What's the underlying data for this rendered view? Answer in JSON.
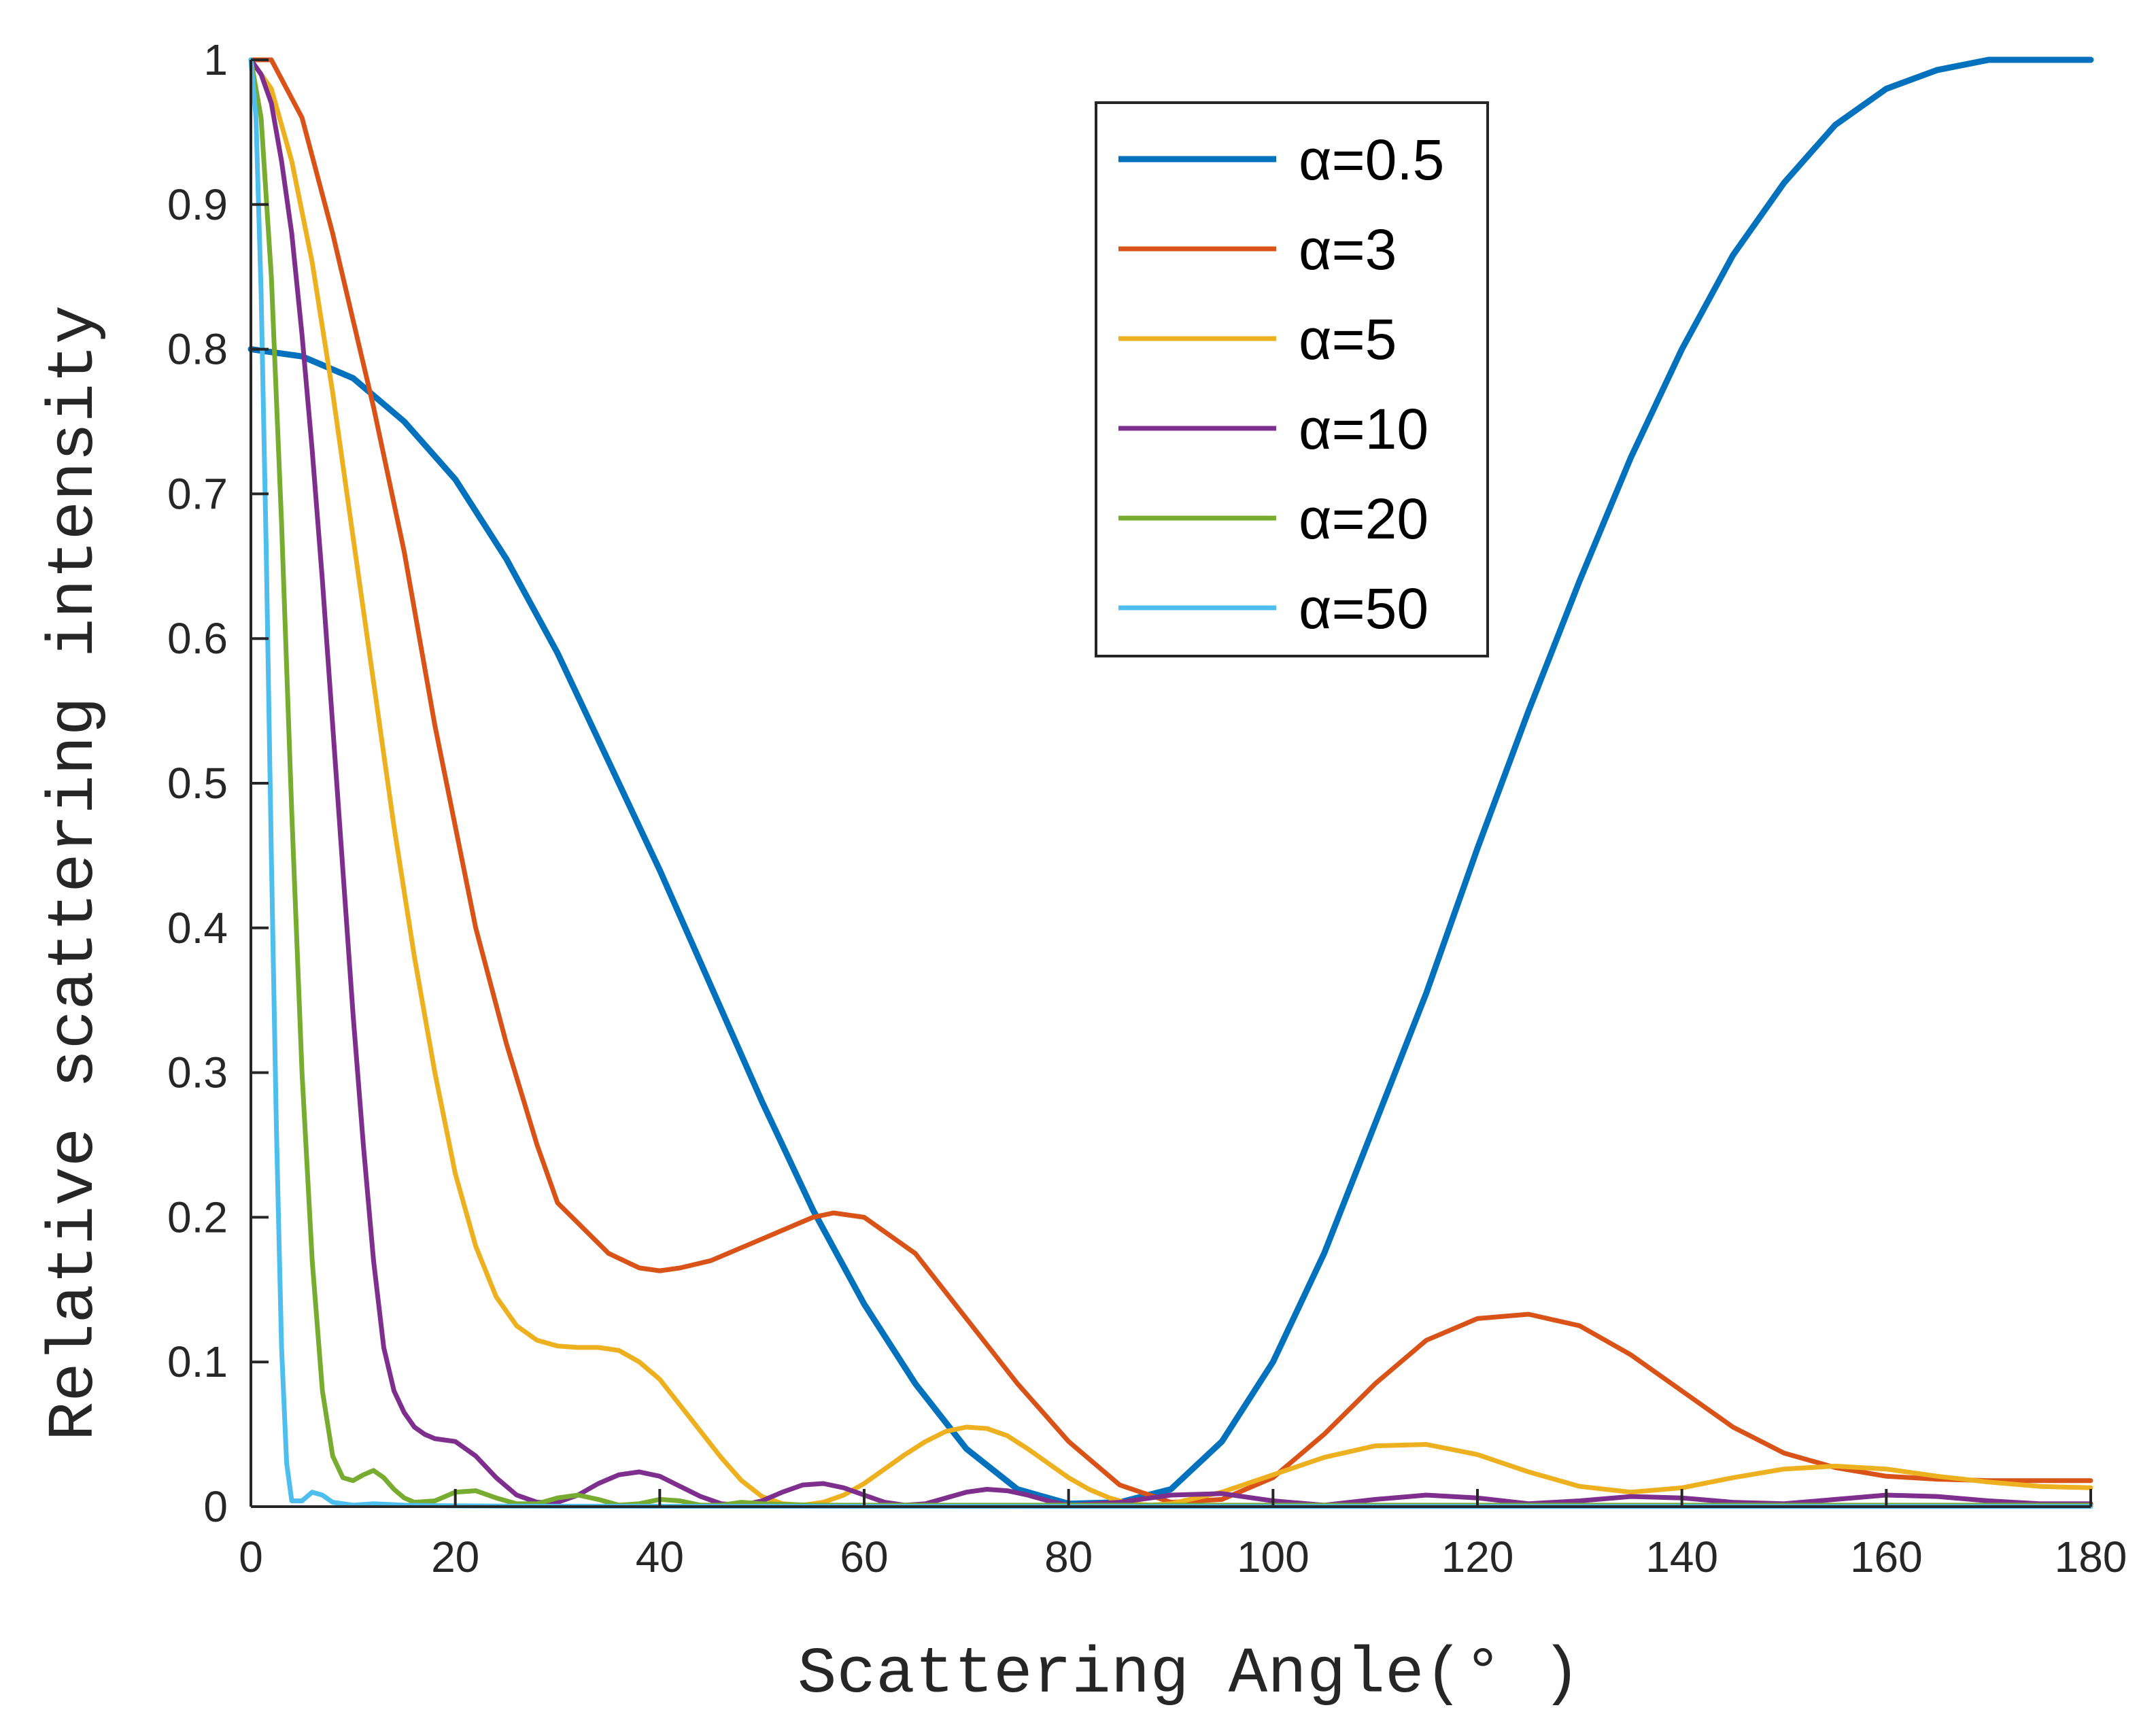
{
  "chart_data": {
    "type": "line",
    "title": "",
    "xlabel": "Scattering Angle(° )",
    "ylabel": "Relative scattering intensity",
    "xlim": [
      0,
      180
    ],
    "ylim": [
      0,
      1
    ],
    "xticks": [
      0,
      20,
      40,
      60,
      80,
      100,
      120,
      140,
      160,
      180
    ],
    "yticks": [
      0,
      0.1,
      0.2,
      0.3,
      0.4,
      0.5,
      0.6,
      0.7,
      0.8,
      0.9,
      1
    ],
    "ytick_labels": [
      "0",
      "0.1",
      "0.2",
      "0.3",
      "0.4",
      "0.5",
      "0.6",
      "0.7",
      "0.8",
      "0.9",
      "1"
    ],
    "grid": false,
    "legend_position": "top-right",
    "series": [
      {
        "name": "α=0.5",
        "color": "#0072BD",
        "x": [
          0,
          5,
          10,
          15,
          20,
          25,
          30,
          35,
          40,
          45,
          50,
          55,
          60,
          65,
          70,
          75,
          80,
          85,
          90,
          95,
          100,
          105,
          110,
          115,
          120,
          125,
          130,
          135,
          140,
          145,
          150,
          155,
          160,
          165,
          170,
          175,
          180
        ],
        "y": [
          0.8,
          0.795,
          0.78,
          0.75,
          0.71,
          0.655,
          0.59,
          0.515,
          0.44,
          0.36,
          0.28,
          0.205,
          0.14,
          0.085,
          0.04,
          0.012,
          0.002,
          0.003,
          0.012,
          0.045,
          0.1,
          0.175,
          0.265,
          0.355,
          0.455,
          0.55,
          0.64,
          0.725,
          0.8,
          0.865,
          0.915,
          0.955,
          0.98,
          0.993,
          1.0,
          1.0,
          1.0
        ]
      },
      {
        "name": "α=3",
        "color": "#D95319",
        "x": [
          0,
          2,
          5,
          8,
          10,
          12,
          15,
          18,
          20,
          22,
          25,
          28,
          30,
          35,
          38,
          40,
          42,
          45,
          50,
          55,
          57,
          60,
          65,
          70,
          75,
          80,
          85,
          90,
          95,
          100,
          105,
          110,
          115,
          120,
          125,
          130,
          135,
          140,
          145,
          150,
          155,
          160,
          165,
          170,
          175,
          180
        ],
        "y": [
          1.0,
          1.0,
          0.96,
          0.88,
          0.82,
          0.76,
          0.66,
          0.54,
          0.47,
          0.4,
          0.32,
          0.25,
          0.21,
          0.175,
          0.165,
          0.163,
          0.165,
          0.17,
          0.185,
          0.2,
          0.203,
          0.2,
          0.175,
          0.13,
          0.085,
          0.045,
          0.015,
          0.003,
          0.005,
          0.02,
          0.05,
          0.085,
          0.115,
          0.13,
          0.133,
          0.125,
          0.105,
          0.08,
          0.055,
          0.037,
          0.027,
          0.021,
          0.019,
          0.018,
          0.018,
          0.018
        ]
      },
      {
        "name": "α=5",
        "color": "#EDB120",
        "x": [
          0,
          2,
          4,
          6,
          8,
          10,
          12,
          14,
          16,
          18,
          20,
          22,
          24,
          26,
          28,
          30,
          32,
          34,
          36,
          38,
          40,
          42,
          44,
          46,
          48,
          50,
          52,
          54,
          56,
          58,
          60,
          62,
          64,
          66,
          68,
          70,
          72,
          74,
          76,
          78,
          80,
          82,
          84,
          86,
          88,
          90,
          95,
          100,
          105,
          110,
          115,
          120,
          125,
          130,
          135,
          140,
          145,
          150,
          155,
          160,
          165,
          170,
          175,
          180
        ],
        "y": [
          1.0,
          0.98,
          0.93,
          0.86,
          0.77,
          0.67,
          0.57,
          0.47,
          0.38,
          0.3,
          0.23,
          0.18,
          0.145,
          0.125,
          0.115,
          0.111,
          0.11,
          0.11,
          0.108,
          0.1,
          0.088,
          0.07,
          0.052,
          0.034,
          0.018,
          0.007,
          0.002,
          0.001,
          0.003,
          0.008,
          0.016,
          0.026,
          0.036,
          0.045,
          0.052,
          0.055,
          0.054,
          0.049,
          0.04,
          0.03,
          0.02,
          0.012,
          0.006,
          0.002,
          0.001,
          0.002,
          0.01,
          0.022,
          0.034,
          0.042,
          0.043,
          0.036,
          0.024,
          0.014,
          0.01,
          0.013,
          0.02,
          0.026,
          0.028,
          0.026,
          0.021,
          0.017,
          0.014,
          0.013
        ]
      },
      {
        "name": "α=10",
        "color": "#7E2F8E",
        "x": [
          0,
          1,
          2,
          3,
          4,
          5,
          6,
          7,
          8,
          9,
          10,
          11,
          12,
          13,
          14,
          15,
          16,
          17,
          18,
          20,
          22,
          24,
          26,
          28,
          30,
          32,
          34,
          36,
          38,
          40,
          42,
          44,
          46,
          48,
          50,
          52,
          54,
          56,
          58,
          60,
          62,
          64,
          66,
          68,
          70,
          72,
          74,
          76,
          78,
          80,
          85,
          90,
          95,
          100,
          105,
          110,
          115,
          120,
          125,
          130,
          135,
          140,
          145,
          150,
          155,
          160,
          165,
          170,
          175,
          180
        ],
        "y": [
          1.0,
          0.99,
          0.97,
          0.93,
          0.88,
          0.81,
          0.73,
          0.64,
          0.54,
          0.44,
          0.34,
          0.25,
          0.17,
          0.11,
          0.08,
          0.065,
          0.055,
          0.05,
          0.047,
          0.045,
          0.035,
          0.02,
          0.008,
          0.003,
          0.003,
          0.008,
          0.016,
          0.022,
          0.024,
          0.021,
          0.014,
          0.007,
          0.002,
          0.001,
          0.004,
          0.01,
          0.015,
          0.016,
          0.013,
          0.008,
          0.003,
          0.001,
          0.002,
          0.006,
          0.01,
          0.012,
          0.011,
          0.008,
          0.004,
          0.001,
          0.003,
          0.008,
          0.009,
          0.004,
          0.001,
          0.005,
          0.008,
          0.006,
          0.002,
          0.004,
          0.007,
          0.006,
          0.003,
          0.002,
          0.005,
          0.008,
          0.007,
          0.004,
          0.002,
          0.002
        ]
      },
      {
        "name": "α=20",
        "color": "#77AC30",
        "x": [
          0,
          1,
          2,
          3,
          4,
          5,
          6,
          7,
          8,
          9,
          10,
          11,
          12,
          13,
          14,
          15,
          16,
          18,
          20,
          22,
          24,
          26,
          28,
          30,
          32,
          34,
          36,
          38,
          40,
          42,
          44,
          46,
          48,
          50,
          55,
          60,
          70,
          80,
          90,
          100,
          120,
          140,
          160,
          180
        ],
        "y": [
          1.0,
          0.96,
          0.85,
          0.68,
          0.48,
          0.3,
          0.17,
          0.08,
          0.035,
          0.02,
          0.018,
          0.022,
          0.025,
          0.02,
          0.012,
          0.006,
          0.003,
          0.004,
          0.01,
          0.011,
          0.006,
          0.002,
          0.002,
          0.006,
          0.008,
          0.005,
          0.001,
          0.002,
          0.005,
          0.004,
          0.001,
          0.001,
          0.003,
          0.002,
          0.001,
          0.001,
          0.001,
          0.001,
          0.001,
          0.001,
          0.001,
          0.001,
          0.001,
          0.001
        ]
      },
      {
        "name": "α=50",
        "color": "#4DBEEE",
        "x": [
          0,
          0.5,
          1,
          1.5,
          2,
          2.5,
          3,
          3.5,
          4,
          5,
          6,
          7,
          8,
          10,
          12,
          15,
          20,
          30,
          60,
          90,
          120,
          150,
          180
        ],
        "y": [
          1.0,
          0.96,
          0.84,
          0.66,
          0.45,
          0.26,
          0.11,
          0.03,
          0.004,
          0.004,
          0.01,
          0.008,
          0.003,
          0.001,
          0.002,
          0.001,
          0.0005,
          0.0003,
          0.0002,
          0.0001,
          0.0001,
          0.0001,
          0.0001
        ]
      }
    ]
  }
}
